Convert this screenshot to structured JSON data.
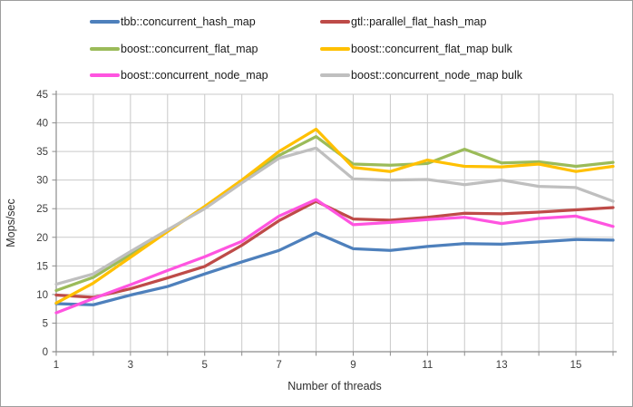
{
  "chart_data": {
    "type": "line",
    "title": "",
    "xlabel": "Number of threads",
    "ylabel": "Mops/sec",
    "x": [
      1,
      2,
      3,
      4,
      5,
      6,
      7,
      8,
      9,
      10,
      11,
      12,
      13,
      14,
      15,
      16
    ],
    "xlim": [
      1,
      16
    ],
    "ylim": [
      0,
      45
    ],
    "ytick_step": 5,
    "xtick_labels": [
      "1",
      "3",
      "5",
      "7",
      "9",
      "11",
      "13",
      "15"
    ],
    "ytick_labels": [
      "0",
      "5",
      "10",
      "15",
      "20",
      "25",
      "30",
      "35",
      "40",
      "45"
    ],
    "grid": "both",
    "legend_position": "top",
    "series": [
      {
        "name": "tbb::concurrent_hash_map",
        "color": "#4E80BC",
        "values": [
          8.4,
          8.2,
          9.9,
          11.4,
          13.6,
          15.7,
          17.7,
          20.8,
          18.0,
          17.7,
          18.4,
          18.9,
          18.8,
          19.2,
          19.6,
          19.5
        ]
      },
      {
        "name": "gtl::parallel_flat_hash_map",
        "color": "#BE4B48",
        "values": [
          9.9,
          9.5,
          11.0,
          12.9,
          14.9,
          18.6,
          22.9,
          26.3,
          23.2,
          23.0,
          23.5,
          24.2,
          24.1,
          24.4,
          24.8,
          25.2
        ]
      },
      {
        "name": "boost::concurrent_flat_map",
        "color": "#9BBB59",
        "values": [
          10.7,
          13.0,
          17.0,
          21.2,
          25.2,
          29.7,
          34.3,
          37.6,
          32.8,
          32.6,
          32.9,
          35.4,
          33.0,
          33.2,
          32.4,
          33.1
        ]
      },
      {
        "name": "boost::concurrent_flat_map bulk",
        "color": "#FFC000",
        "values": [
          8.5,
          12.0,
          16.5,
          21.0,
          25.4,
          30.0,
          35.0,
          38.9,
          32.2,
          31.5,
          33.5,
          32.4,
          32.3,
          32.8,
          31.5,
          32.4
        ]
      },
      {
        "name": "boost::concurrent_node_map",
        "color": "#FF54E0",
        "values": [
          6.8,
          9.3,
          11.7,
          14.2,
          16.6,
          19.3,
          23.7,
          26.6,
          22.2,
          22.6,
          23.1,
          23.5,
          22.4,
          23.3,
          23.7,
          21.9
        ]
      },
      {
        "name": "boost::concurrent_node_map bulk",
        "color": "#BFBFBF",
        "values": [
          11.8,
          13.6,
          17.5,
          21.3,
          25.0,
          29.5,
          33.8,
          35.6,
          30.2,
          30.0,
          30.1,
          29.2,
          30.0,
          28.9,
          28.7,
          26.3
        ]
      }
    ],
    "colors": {
      "gridline": "#C9C9C9",
      "axis": "#8C8C8C",
      "tick_text": "#3d3d3d"
    }
  }
}
